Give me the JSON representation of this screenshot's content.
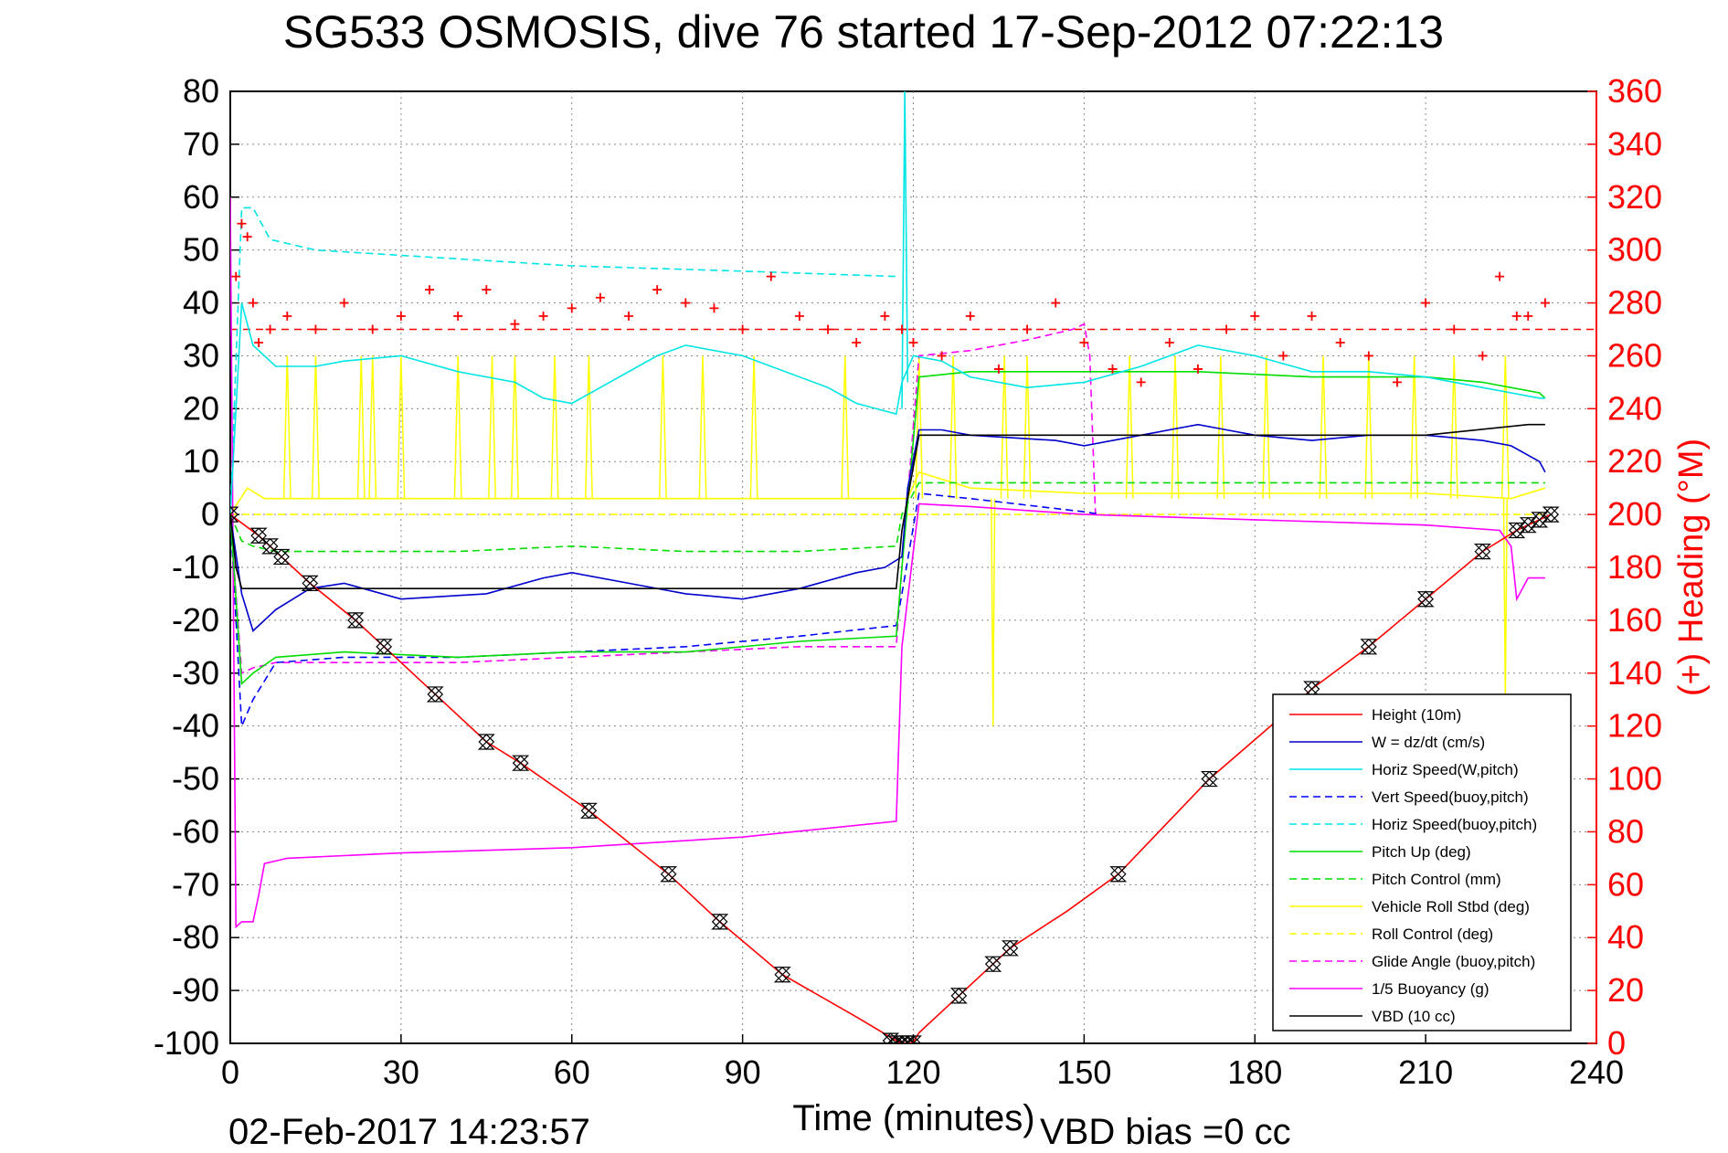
{
  "chart_data": {
    "type": "line",
    "title": "SG533 OSMOSIS, dive 76 started 17-Sep-2012 07:22:13",
    "xlabel": "Time (minutes)",
    "ylabel_right": "(+) Heading (°M)",
    "footer_left": "02-Feb-2017 14:23:57",
    "footer_right": "VBD bias =0 cc",
    "xlim": [
      0,
      240
    ],
    "ylim_left": [
      -100,
      80
    ],
    "ylim_right": [
      0,
      360
    ],
    "x_ticks": [
      "0",
      "30",
      "60",
      "90",
      "120",
      "150",
      "180",
      "210",
      "240"
    ],
    "y_ticks_left": [
      "80",
      "70",
      "60",
      "50",
      "40",
      "30",
      "20",
      "10",
      "0",
      "-10",
      "-20",
      "-30",
      "-40",
      "-50",
      "-60",
      "-70",
      "-80",
      "-90",
      "-100"
    ],
    "y_ticks_right": [
      "360",
      "340",
      "320",
      "300",
      "280",
      "260",
      "240",
      "220",
      "200",
      "180",
      "160",
      "140",
      "120",
      "100",
      "80",
      "60",
      "40",
      "20",
      "0"
    ],
    "grid": true,
    "legend_position": "bottom-right",
    "colors": {
      "height": "#ff0000",
      "w": "#0000cc",
      "horiz_speed": "#00e5e5",
      "vert_speed_buoy": "#0000ff",
      "horiz_speed_buoy": "#00e5e5",
      "pitch_up": "#00dd00",
      "pitch_control": "#00dd00",
      "roll": "#ffff00",
      "roll_control": "#ffff00",
      "glide_angle": "#ff00ff",
      "buoyancy": "#ff00ff",
      "vbd": "#000000",
      "heading_marker": "#ff0000"
    },
    "series": [
      {
        "name": "Height (10m)",
        "key": "height",
        "style": "solid",
        "x": [
          0,
          5,
          14,
          22,
          27,
          36,
          45,
          51,
          63,
          77,
          86,
          97,
          110,
          117,
          118,
          119,
          120,
          121,
          128,
          134,
          137,
          147,
          156,
          172,
          186,
          190,
          200,
          210,
          220,
          226,
          230,
          232
        ],
        "y": [
          0,
          -4,
          -13,
          -20,
          -25,
          -34,
          -43,
          -47,
          -56,
          -68,
          -77,
          -87,
          -95,
          -99.5,
          -100,
          -100,
          -99.8,
          -98,
          -91,
          -85,
          -82,
          -75,
          -68,
          -50,
          -37,
          -33,
          -25,
          -16,
          -7,
          -3,
          -1,
          0
        ]
      },
      {
        "name": "W = dz/dt (cm/s)",
        "key": "w",
        "style": "solid",
        "x": [
          0,
          2,
          4,
          8,
          14,
          20,
          30,
          45,
          55,
          60,
          70,
          80,
          90,
          100,
          110,
          115,
          118,
          119,
          121,
          125,
          130,
          145,
          150,
          160,
          170,
          175,
          180,
          190,
          200,
          210,
          220,
          225,
          230,
          231
        ],
        "y": [
          0,
          -15,
          -22,
          -18,
          -14,
          -13,
          -16,
          -15,
          -12,
          -11,
          -13,
          -15,
          -16,
          -14,
          -11,
          -10,
          -8,
          5,
          16,
          16,
          15,
          14,
          13,
          15,
          17,
          16,
          15,
          14,
          15,
          15,
          14,
          13,
          10,
          8
        ]
      },
      {
        "name": "Horiz Speed(W,pitch)",
        "key": "horiz_speed",
        "style": "solid",
        "x": [
          0,
          2,
          4,
          8,
          15,
          20,
          30,
          40,
          50,
          55,
          60,
          65,
          75,
          80,
          90,
          95,
          105,
          110,
          117,
          118,
          120,
          125,
          130,
          140,
          150,
          160,
          170,
          180,
          190,
          200,
          210,
          220,
          225,
          230,
          231
        ],
        "y": [
          0,
          40,
          32,
          28,
          28,
          29,
          30,
          27,
          25,
          22,
          21,
          24,
          30,
          32,
          30,
          28,
          24,
          21,
          19,
          25,
          30,
          29,
          26,
          24,
          25,
          28,
          32,
          30,
          27,
          27,
          26,
          24,
          23,
          22,
          22
        ]
      },
      {
        "name": "Vert Speed(buoy,pitch)",
        "key": "vert_speed_buoy",
        "style": "dashed",
        "x": [
          0,
          2,
          4,
          8,
          20,
          40,
          60,
          80,
          100,
          117,
          118,
          121,
          130,
          150,
          153
        ],
        "y": [
          0,
          -40,
          -35,
          -28,
          -27,
          -27,
          -26,
          -25,
          -23,
          -21,
          -15,
          4,
          3,
          0.5,
          0
        ]
      },
      {
        "name": "Horiz Speed(buoy,pitch)",
        "key": "horiz_speed_buoy",
        "style": "dashed",
        "x": [
          0,
          2,
          4,
          7,
          15,
          30,
          60,
          90,
          117
        ],
        "y": [
          0,
          58,
          58,
          52,
          50,
          49,
          47,
          46,
          45
        ]
      },
      {
        "name": "Pitch Up (deg)",
        "key": "pitch_up",
        "style": "solid",
        "x": [
          0,
          2,
          4,
          8,
          20,
          40,
          60,
          80,
          100,
          117,
          118,
          121,
          130,
          150,
          170,
          190,
          210,
          220,
          230,
          231
        ],
        "y": [
          0,
          -32,
          -30,
          -27,
          -26,
          -27,
          -26,
          -26,
          -24,
          -23,
          -10,
          26,
          27,
          27,
          27,
          26,
          26,
          25,
          23,
          22
        ]
      },
      {
        "name": "Pitch Control (mm)",
        "key": "pitch_control",
        "style": "dashed",
        "x": [
          0,
          2,
          4,
          8,
          20,
          40,
          60,
          80,
          100,
          117,
          118,
          121,
          150,
          170,
          190,
          210,
          230,
          231
        ],
        "y": [
          0,
          -5,
          -6,
          -7,
          -7,
          -7,
          -6,
          -7,
          -7,
          -6,
          0,
          6,
          6,
          6,
          6,
          6,
          6,
          6
        ]
      },
      {
        "name": "Vehicle Roll Stbd (deg)",
        "key": "roll",
        "style": "solid",
        "x": [
          0,
          3,
          6,
          10,
          20,
          40,
          60,
          80,
          100,
          117,
          119,
          121,
          130,
          150,
          170,
          190,
          210,
          225,
          231
        ],
        "y": [
          0,
          5,
          3,
          3,
          3,
          3,
          3,
          3,
          3,
          3,
          3,
          8,
          5,
          4,
          4,
          4,
          4,
          3,
          5
        ]
      },
      {
        "name": "Roll Control (deg)",
        "key": "roll_control",
        "style": "dashed",
        "x": [
          0,
          2,
          119,
          121,
          231
        ],
        "y": [
          0,
          0,
          0,
          0,
          0
        ]
      },
      {
        "name": "Glide Angle (buoy,pitch)",
        "key": "glide_angle",
        "style": "dashed",
        "x": [
          0,
          2,
          4,
          8,
          20,
          40,
          60,
          80,
          100,
          117,
          118,
          121,
          130,
          140,
          148,
          150,
          151,
          152
        ],
        "y": [
          0,
          -30,
          -29,
          -28,
          -28,
          -28,
          -27,
          -26,
          -25,
          -25,
          -10,
          30,
          31,
          33,
          35,
          36,
          30,
          0
        ]
      },
      {
        "name": "1/5 Buoyancy (g)",
        "key": "buoyancy",
        "style": "solid",
        "x": [
          0,
          1,
          2,
          4,
          5,
          6,
          10,
          30,
          60,
          90,
          117,
          118,
          121,
          130,
          150,
          180,
          210,
          223,
          225,
          226,
          228,
          231
        ],
        "y": [
          60,
          -78,
          -77,
          -77,
          -72,
          -66,
          -65,
          -64,
          -63,
          -61,
          -58,
          -25,
          2,
          1.5,
          0,
          -1,
          -2,
          -3,
          -6,
          -16,
          -12,
          -12
        ]
      },
      {
        "name": "VBD (10 cc)",
        "key": "vbd",
        "style": "solid",
        "x": [
          0,
          1,
          2,
          117,
          118,
          121,
          150,
          180,
          210,
          228,
          231
        ],
        "y": [
          0,
          -10,
          -14,
          -14,
          -3,
          15,
          15,
          15,
          15,
          17,
          17
        ]
      }
    ],
    "heading": {
      "name": "(+) Heading (°M)",
      "x": [
        1,
        2,
        3,
        4,
        5,
        7,
        10,
        15,
        20,
        25,
        30,
        35,
        40,
        45,
        50,
        55,
        60,
        65,
        70,
        75,
        80,
        85,
        90,
        95,
        100,
        105,
        110,
        115,
        118,
        120,
        125,
        130,
        135,
        140,
        145,
        150,
        155,
        160,
        165,
        170,
        175,
        180,
        185,
        190,
        195,
        200,
        205,
        210,
        215,
        220,
        223,
        226,
        228,
        231
      ],
      "y": [
        290,
        310,
        305,
        280,
        265,
        270,
        275,
        270,
        280,
        270,
        275,
        285,
        275,
        285,
        272,
        275,
        278,
        282,
        275,
        285,
        280,
        278,
        270,
        290,
        275,
        270,
        265,
        275,
        270,
        265,
        260,
        275,
        255,
        270,
        280,
        265,
        255,
        250,
        265,
        255,
        270,
        275,
        260,
        275,
        265,
        260,
        250,
        280,
        270,
        260,
        290,
        275,
        275,
        280
      ]
    },
    "reference_line": {
      "name": "heading reference",
      "value": 270
    },
    "markers": {
      "x": [
        0,
        5,
        7,
        9,
        14,
        22,
        27,
        36,
        45,
        51,
        63,
        77,
        86,
        97,
        116,
        117,
        118,
        119,
        120,
        128,
        134,
        137,
        156,
        172,
        190,
        200,
        210,
        220,
        226,
        228,
        230,
        232
      ],
      "y": [
        0,
        -4,
        -6,
        -8,
        -13,
        -20,
        -25,
        -34,
        -43,
        -47,
        -56,
        -68,
        -77,
        -87,
        -99.5,
        -100,
        -100,
        -100,
        -100,
        -91,
        -85,
        -82,
        -68,
        -50,
        -33,
        -25,
        -16,
        -7,
        -3,
        -2,
        -1,
        0
      ]
    },
    "spikes": {
      "roll_up": [
        10,
        15,
        23,
        25,
        30,
        40,
        46,
        50,
        57,
        63,
        76,
        83,
        92,
        108,
        121,
        127,
        136,
        140,
        158,
        166,
        174,
        182,
        192,
        200,
        208,
        215,
        224
      ],
      "roll_up_top": 30,
      "roll_down": [
        {
          "x": 134,
          "y": -40
        },
        {
          "x": 224,
          "y": -35
        }
      ],
      "cyan_top": {
        "x": 118.5,
        "y": 80
      }
    }
  }
}
